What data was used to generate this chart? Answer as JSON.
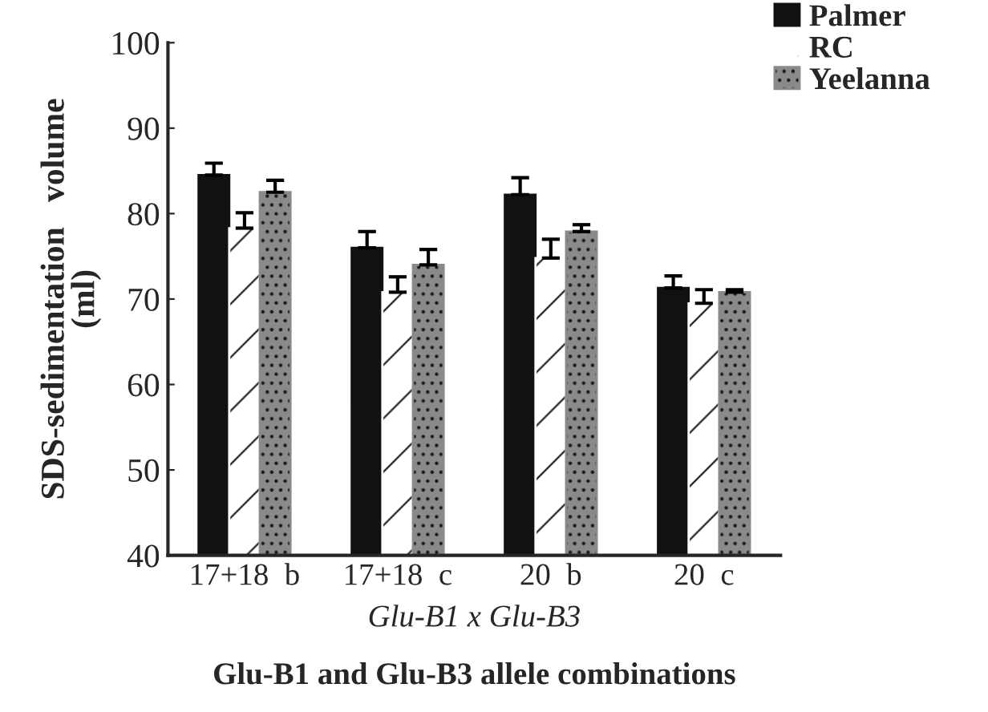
{
  "chart_data": {
    "type": "bar",
    "title": "Glu-B1 and Glu-B3 allele combinations",
    "xlabel": "Glu-B1 x Glu-B3",
    "ylabel": "SDS-sedimentation   volume\n(ml)",
    "categories": [
      "17+18  b",
      "17+18  c",
      "20  b",
      "20  c"
    ],
    "series": [
      {
        "name": "Palmer",
        "color": "#111111",
        "values": [
          84.5,
          76.0,
          82.2,
          71.3
        ],
        "errors": [
          1.4,
          1.9,
          2.0,
          1.4
        ]
      },
      {
        "name": "RC",
        "color": "#ffffff",
        "values": [
          78.3,
          70.8,
          74.8,
          69.5
        ],
        "errors": [
          1.8,
          1.8,
          2.2,
          1.6
        ]
      },
      {
        "name": "Yeelanna",
        "color": "#8a8a8a",
        "values": [
          82.5,
          74.0,
          77.9,
          70.8
        ],
        "errors": [
          1.4,
          1.8,
          0.8,
          0.3
        ]
      }
    ],
    "ylim": [
      40,
      100
    ],
    "yticks": [
      40,
      50,
      60,
      70,
      80,
      90,
      100
    ],
    "grid": false,
    "legend": "top right"
  }
}
